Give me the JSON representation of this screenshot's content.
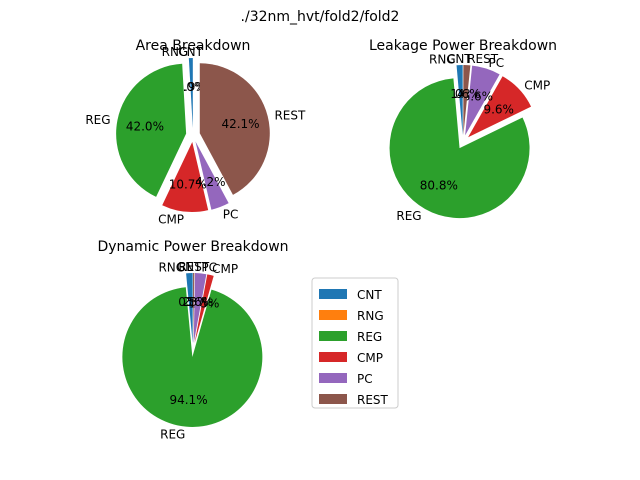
{
  "figure": {
    "suptitle": "./32nm_hvt/fold2/fold2"
  },
  "colors": {
    "CNT": "#1f77b4",
    "RNG": "#ff7f0e",
    "REG": "#2ca02c",
    "CMP": "#d62728",
    "PC": "#9467bd",
    "REST": "#8c564b"
  },
  "legend": {
    "placement": "lower-right-of-grid",
    "entries": [
      "CNT",
      "RNG",
      "REG",
      "CMP",
      "PC",
      "REST"
    ]
  },
  "chart_data": [
    {
      "type": "pie",
      "title": "Area Breakdown",
      "labels": [
        "CNT",
        "RNG",
        "REG",
        "CMP",
        "PC",
        "REST"
      ],
      "values": [
        0.9,
        0.0,
        42.0,
        10.7,
        4.2,
        42.1
      ],
      "pct_labels": [
        "0.9%",
        "0.0%",
        "42.0%",
        "10.7%",
        "4.2%",
        "42.1%"
      ],
      "explode": [
        0.1,
        0.1,
        0.1,
        0.1,
        0.1,
        0.1
      ],
      "start_angle_deg": 90
    },
    {
      "type": "pie",
      "title": "Leakage Power Breakdown",
      "labels": [
        "CNT",
        "RNG",
        "REG",
        "CMP",
        "PC",
        "REST"
      ],
      "values": [
        1.4,
        0.0,
        80.8,
        9.6,
        6.6,
        1.6
      ],
      "pct_labels": [
        "1.4%",
        "0.0%",
        "80.8%",
        "9.6%",
        "6.6%",
        "1.6%"
      ],
      "explode": [
        0.1,
        0.1,
        0.1,
        0.1,
        0.1,
        0.1
      ],
      "start_angle_deg": 90
    },
    {
      "type": "pie",
      "title": "Dynamic Power Breakdown",
      "labels": [
        "CNT",
        "RNG",
        "REG",
        "CMP",
        "PC",
        "REST"
      ],
      "values": [
        1.5,
        0.0,
        94.1,
        1.5,
        2.6,
        0.3
      ],
      "pct_labels": [
        "1.5%",
        "0.0%",
        "94.1%",
        "1.5%",
        "2.6%",
        "0.3%"
      ],
      "explode": [
        0.1,
        0.1,
        0.1,
        0.1,
        0.1,
        0.1
      ],
      "start_angle_deg": 90
    }
  ]
}
